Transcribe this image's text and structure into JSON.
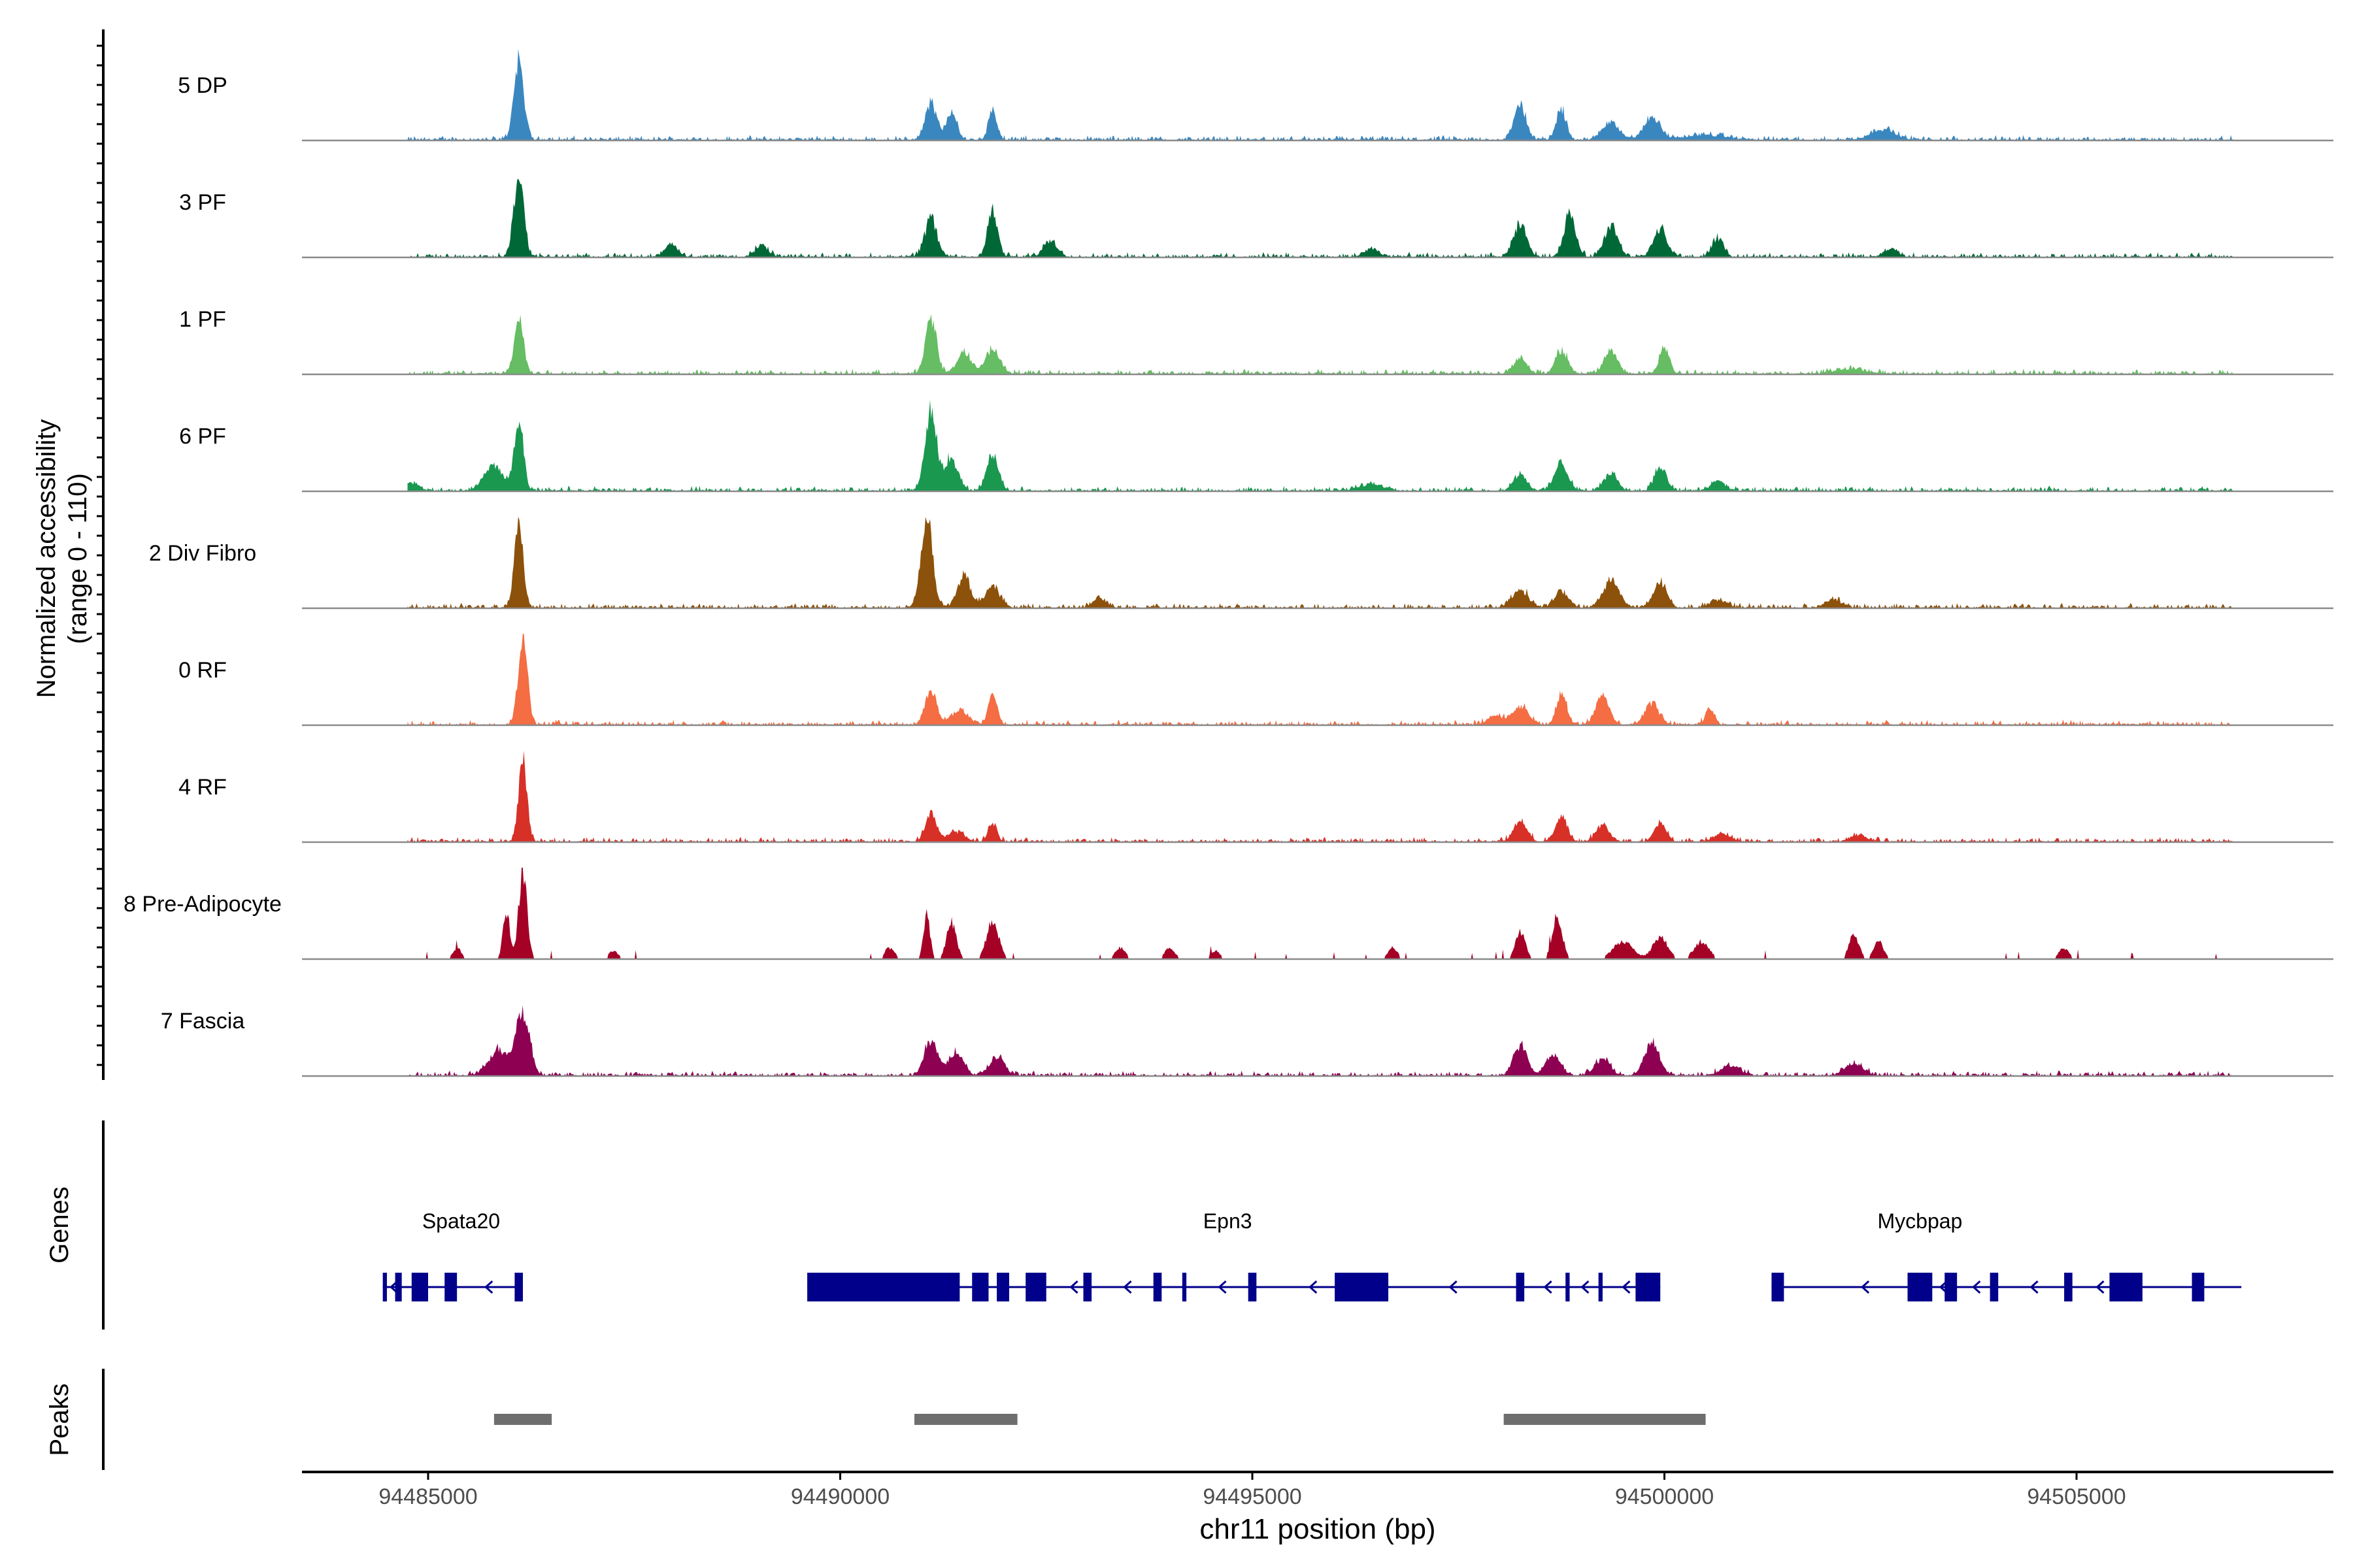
{
  "chart_data": {
    "type": "area",
    "title": "",
    "xlabel": "chr11 position (bp)",
    "ylabel_line1": "Normalized accessibility",
    "ylabel_line2": "(range 0 - 110)",
    "ylim": [
      0,
      110
    ],
    "xlim": [
      94483500,
      94508100
    ],
    "xticks": [
      94485000,
      94490000,
      94495000,
      94500000,
      94505000
    ],
    "xtick_labels": [
      "94485000",
      "94490000",
      "94495000",
      "94500000",
      "94505000"
    ],
    "tracks": [
      {
        "label": "5 DP",
        "color": "#3A87C0",
        "peaks": [
          [
            94486100,
            98,
            60
          ],
          [
            94491100,
            45,
            70
          ],
          [
            94491350,
            34,
            60
          ],
          [
            94491850,
            38,
            50
          ],
          [
            94498250,
            44,
            70
          ],
          [
            94498750,
            38,
            60
          ],
          [
            94499350,
            22,
            100
          ],
          [
            94499850,
            26,
            100
          ],
          [
            94502650,
            13,
            150
          ],
          [
            94500500,
            6,
            250
          ]
        ]
      },
      {
        "label": "3 PF",
        "color": "#006837",
        "peaks": [
          [
            94486100,
            102,
            60
          ],
          [
            94491100,
            48,
            70
          ],
          [
            94491850,
            56,
            60
          ],
          [
            94492550,
            20,
            80
          ],
          [
            94498250,
            38,
            80
          ],
          [
            94498850,
            54,
            70
          ],
          [
            94499350,
            38,
            80
          ],
          [
            94499950,
            34,
            80
          ],
          [
            94500650,
            22,
            70
          ],
          [
            94487950,
            16,
            80
          ],
          [
            94489050,
            13,
            80
          ],
          [
            94496450,
            10,
            80
          ],
          [
            94502750,
            10,
            80
          ]
        ]
      },
      {
        "label": "1 PF",
        "color": "#66BD63",
        "peaks": [
          [
            94486100,
            73,
            55
          ],
          [
            94491100,
            69,
            65
          ],
          [
            94491500,
            27,
            80
          ],
          [
            94491850,
            30,
            90
          ],
          [
            94498250,
            18,
            80
          ],
          [
            94498750,
            30,
            70
          ],
          [
            94499350,
            27,
            80
          ],
          [
            94500000,
            31,
            60
          ],
          [
            94502250,
            6,
            200
          ]
        ]
      },
      {
        "label": "6 PF",
        "color": "#1A9850",
        "peaks": [
          [
            94486100,
            83,
            55
          ],
          [
            94485800,
            30,
            120
          ],
          [
            94491100,
            100,
            70
          ],
          [
            94491350,
            40,
            80
          ],
          [
            94491850,
            46,
            70
          ],
          [
            94498250,
            20,
            80
          ],
          [
            94498750,
            34,
            80
          ],
          [
            94499350,
            22,
            80
          ],
          [
            94499950,
            30,
            70
          ],
          [
            94484800,
            10,
            80
          ],
          [
            94500650,
            12,
            80
          ],
          [
            94496450,
            8,
            150
          ]
        ]
      },
      {
        "label": "2 Div Fibro",
        "color": "#8C510A",
        "peaks": [
          [
            94486100,
            98,
            55
          ],
          [
            94491050,
            115,
            70
          ],
          [
            94491500,
            40,
            80
          ],
          [
            94491850,
            25,
            90
          ],
          [
            94498250,
            22,
            100
          ],
          [
            94498750,
            20,
            80
          ],
          [
            94499350,
            33,
            100
          ],
          [
            94499950,
            30,
            80
          ],
          [
            94493150,
            12,
            80
          ],
          [
            94500650,
            10,
            100
          ],
          [
            94502050,
            10,
            100
          ]
        ]
      },
      {
        "label": "0 RF",
        "color": "#F46D43",
        "peaks": [
          [
            94486150,
            110,
            55
          ],
          [
            94491100,
            40,
            70
          ],
          [
            94491850,
            36,
            55
          ],
          [
            94491450,
            18,
            100
          ],
          [
            94498250,
            22,
            100
          ],
          [
            94498750,
            38,
            60
          ],
          [
            94499250,
            35,
            80
          ],
          [
            94499850,
            27,
            80
          ],
          [
            94500550,
            22,
            50
          ],
          [
            94497950,
            10,
            100
          ]
        ]
      },
      {
        "label": "4 RF",
        "color": "#D73027",
        "peaks": [
          [
            94486150,
            105,
            50
          ],
          [
            94491100,
            34,
            65
          ],
          [
            94491850,
            24,
            50
          ],
          [
            94491400,
            12,
            100
          ],
          [
            94498250,
            25,
            80
          ],
          [
            94498750,
            30,
            70
          ],
          [
            94499250,
            20,
            80
          ],
          [
            94499950,
            24,
            70
          ],
          [
            94500700,
            10,
            100
          ],
          [
            94502350,
            8,
            100
          ]
        ]
      },
      {
        "label": "8 Pre-Adipocyte",
        "color": "#A50026",
        "peaks": [
          [
            94486150,
            110,
            50
          ],
          [
            94485950,
            60,
            40
          ],
          [
            94491050,
            55,
            40
          ],
          [
            94491350,
            45,
            60
          ],
          [
            94491850,
            50,
            70
          ],
          [
            94490600,
            14,
            60
          ],
          [
            94493400,
            14,
            60
          ],
          [
            94494000,
            14,
            60
          ],
          [
            94494550,
            10,
            60
          ],
          [
            94498250,
            34,
            60
          ],
          [
            94498700,
            55,
            60
          ],
          [
            94499500,
            22,
            120
          ],
          [
            94499950,
            28,
            90
          ],
          [
            94500450,
            22,
            90
          ],
          [
            94502300,
            30,
            60
          ],
          [
            94502600,
            22,
            60
          ],
          [
            94504850,
            14,
            60
          ],
          [
            94485350,
            14,
            50
          ],
          [
            94487250,
            10,
            60
          ],
          [
            94496700,
            14,
            60
          ]
        ]
      },
      {
        "label": "7 Fascia",
        "color": "#8E0152",
        "peaks": [
          [
            94486150,
            80,
            80
          ],
          [
            94485850,
            30,
            120
          ],
          [
            94491100,
            45,
            80
          ],
          [
            94491400,
            28,
            90
          ],
          [
            94491900,
            24,
            90
          ],
          [
            94498250,
            37,
            80
          ],
          [
            94498650,
            25,
            90
          ],
          [
            94499250,
            20,
            90
          ],
          [
            94499850,
            40,
            90
          ],
          [
            94502300,
            15,
            110
          ],
          [
            94500800,
            12,
            120
          ]
        ]
      }
    ],
    "genes": {
      "panel_label": "Genes",
      "list": [
        {
          "name": "Spata20",
          "label_pos": 94485400,
          "start": 94484450,
          "end": 94486150,
          "exons": [
            [
              94484450,
              94484500
            ],
            [
              94484600,
              94484680
            ],
            [
              94484800,
              94485000
            ],
            [
              94485200,
              94485350
            ],
            [
              94486050,
              94486150
            ]
          ],
          "arrows": [
            94484550,
            94485700
          ]
        },
        {
          "name": "Epn3",
          "label_pos": 94494700,
          "start": 94489600,
          "end": 94499950,
          "exons": [
            [
              94489600,
              94491450
            ],
            [
              94491600,
              94491800
            ],
            [
              94491900,
              94492050
            ],
            [
              94492250,
              94492500
            ],
            [
              94492950,
              94493050
            ],
            [
              94493800,
              94493900
            ],
            [
              94494150,
              94494200
            ],
            [
              94494950,
              94495050
            ],
            [
              94496000,
              94496650
            ],
            [
              94498200,
              94498300
            ],
            [
              94498800,
              94498850
            ],
            [
              94499200,
              94499250
            ],
            [
              94499650,
              94499950
            ]
          ],
          "arrows": [
            94492800,
            94493450,
            94494600,
            94495700,
            94497400,
            94498550,
            94499000,
            94499500
          ]
        },
        {
          "name": "Mycbpap",
          "label_pos": 94503100,
          "start": 94501300,
          "end": 94507000,
          "exons": [
            [
              94501300,
              94501450
            ],
            [
              94502950,
              94503250
            ],
            [
              94503400,
              94503550
            ],
            [
              94503950,
              94504050
            ],
            [
              94504850,
              94504950
            ],
            [
              94505400,
              94505800
            ],
            [
              94506400,
              94506550
            ]
          ],
          "arrows": [
            94502400,
            94503350,
            94503750,
            94504450,
            94505250
          ]
        }
      ]
    },
    "peaks_track": {
      "panel_label": "Peaks",
      "regions": [
        [
          94485800,
          94486500
        ],
        [
          94490900,
          94492150
        ],
        [
          94498050,
          94500500
        ]
      ]
    }
  }
}
